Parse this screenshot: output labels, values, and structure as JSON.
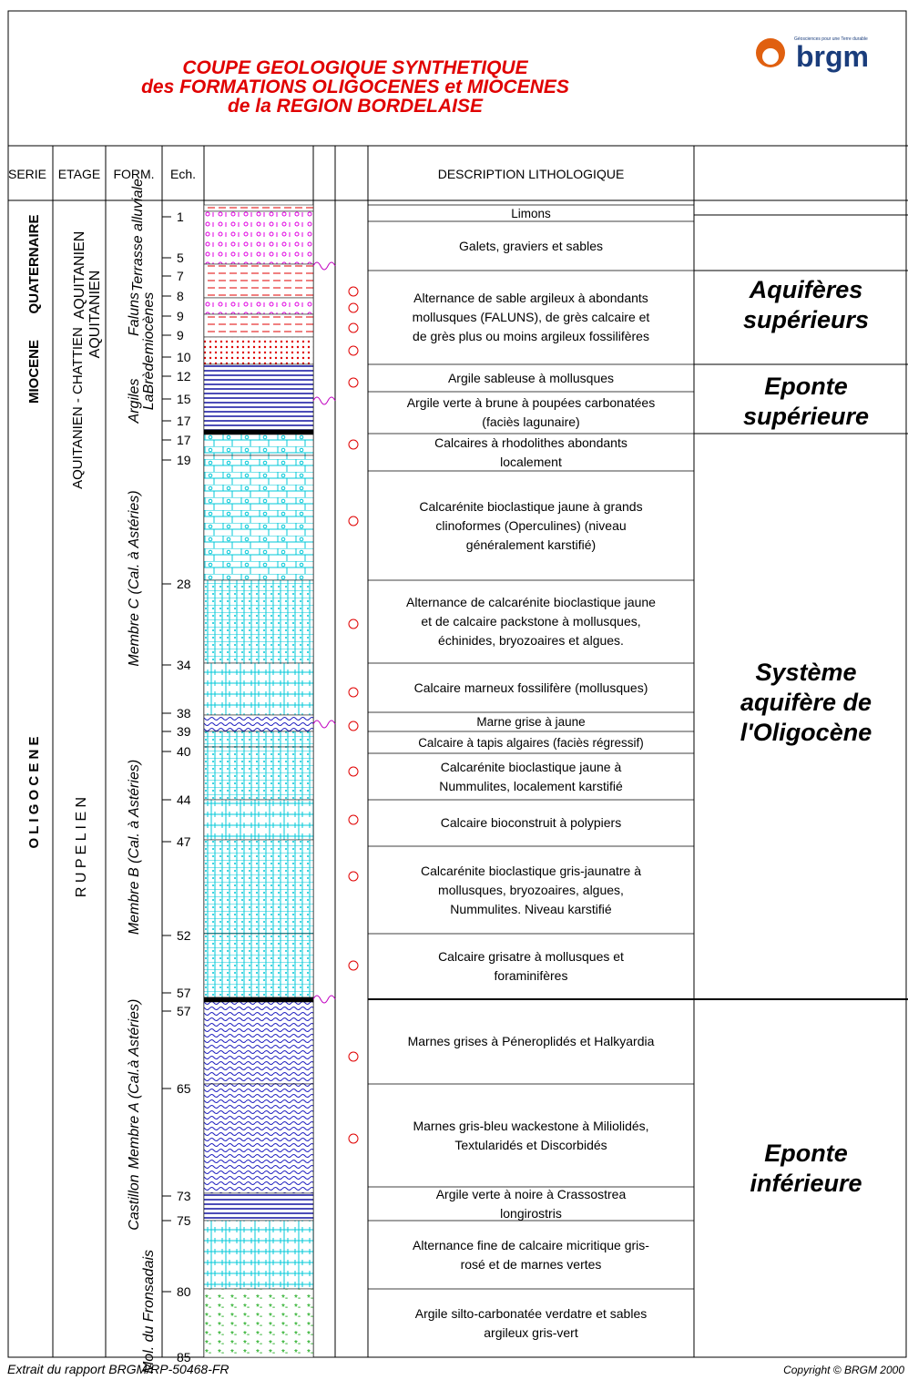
{
  "header": {
    "title": [
      "COUPE GEOLOGIQUE SYNTHETIQUE",
      "des  FORMATIONS  OLIGOCENES  et  MIOCENES",
      "de  la    REGION  BORDELAISE"
    ],
    "logo": "brgm",
    "logo_tagline": "Géosciences pour une Terre durable"
  },
  "columns": [
    "SERIE",
    "ETAGE",
    "FORM.",
    "Ech.",
    "DESCRIPTION   LITHOLOGIQUE"
  ],
  "series": [
    "QUATERNAIRE",
    "MIOCENE",
    "O L I G O C E N E"
  ],
  "etages": [
    "AQUITANIEN",
    "AQUITANIEN",
    "AQUITANIEN - CHATTIEN",
    "R U P E L I E N"
  ],
  "formations": [
    "Terrasse alluviale",
    "Faluns",
    "miocènes",
    "Argiles",
    "LaBrède",
    "Membre C  (Cal. à Astéries)",
    "Membre B  (Cal. à Astéries)",
    "Membre A   (Cal.à Astéries)",
    "Castillon",
    "Mol. du Fronsadais"
  ],
  "ech": [
    1,
    5,
    7,
    8,
    9,
    9,
    10,
    12,
    15,
    17,
    17,
    19,
    28,
    34,
    38,
    39,
    40,
    44,
    47,
    52,
    57,
    57,
    65,
    73,
    75,
    80,
    85
  ],
  "descriptions": [
    "Limons",
    "Galets, graviers et sables",
    "Alternance de sable argileux à abondants mollusques (FALUNS), de grès calcaire et de grès plus ou moins argileux fossilifères",
    "Argile sableuse à mollusques",
    "Argile verte à brune à poupées carbonatées  (faciès lagunaire)",
    "Calcaires à rhodolithes abondants localement",
    "Calcarénite bioclastique jaune à grands clinoformes (Operculines)          (niveau généralement karstifié)",
    "Alternance de calcarénite bioclastique jaune et de calcaire packstone à mollusques, échinides, bryozoaires et algues.",
    "Calcaire marneux fossilifère (mollusques)",
    "Marne grise à jaune",
    "Calcaire à tapis algaires  (faciès régressif)",
    "Calcarénite bioclastique jaune à Nummulites, localement karstifié",
    "Calcaire bioconstruit à polypiers",
    "Calcarénite bioclastique gris-jaunatre à mollusques, bryozoaires, algues, Nummulites. Niveau karstifié",
    "Calcaire grisatre à mollusques et foraminifères",
    "Marnes grises à Péneroplidés et Halkyardia",
    "Marnes gris-bleu wackestone à Miliolidés, Textularidés et Discorbidés",
    "Argile verte à noire à Crassostrea longirostris",
    "Alternance fine de calcaire micritique gris-rosé et de marnes vertes",
    "Argile silto-carbonatée verdatre et sables argileux gris-vert"
  ],
  "aquifers": [
    "Aquifères supérieurs",
    "Eponte supérieure",
    "Système aquifère de l'Oligocène",
    "Eponte inférieure"
  ],
  "footer": {
    "source": "Extrait du rapport BRGM/RP-50468-FR",
    "copyright": "Copyright © BRGM 2000"
  }
}
